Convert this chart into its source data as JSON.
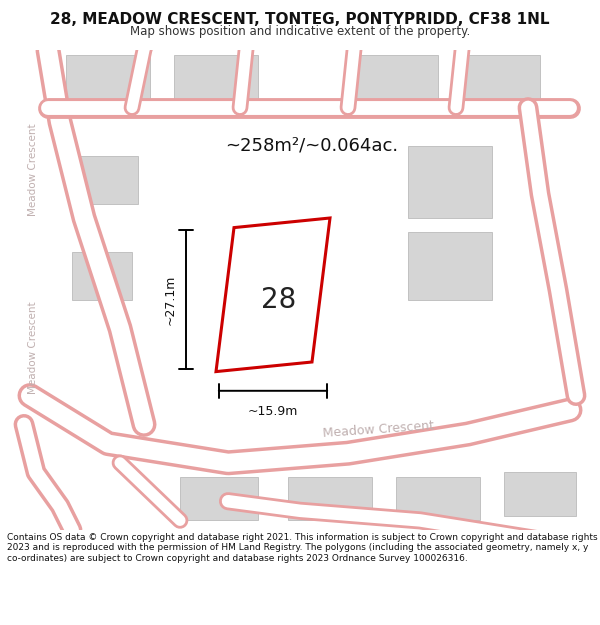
{
  "title": "28, MEADOW CRESCENT, TONTEG, PONTYPRIDD, CF38 1NL",
  "subtitle": "Map shows position and indicative extent of the property.",
  "footer": "Contains OS data © Crown copyright and database right 2021. This information is subject to Crown copyright and database rights 2023 and is reproduced with the permission of HM Land Registry. The polygons (including the associated geometry, namely x, y co-ordinates) are subject to Crown copyright and database rights 2023 Ordnance Survey 100026316.",
  "area_label": "~258m²/~0.064ac.",
  "property_number": "28",
  "dim_width": "~15.9m",
  "dim_height": "~27.1m",
  "bg_color": "#ffffff",
  "map_bg": "#f0f0f0",
  "road_fill": "#ffffff",
  "road_edge": "#e8a0a0",
  "building_color": "#d5d5d5",
  "building_edge": "#bbbbbb",
  "plot_edge": "#cc0000",
  "plot_fill": "#ffffff",
  "street_label_color": "#c0b0b0",
  "dim_color": "#111111",
  "title_color": "#111111",
  "footer_color": "#111111"
}
